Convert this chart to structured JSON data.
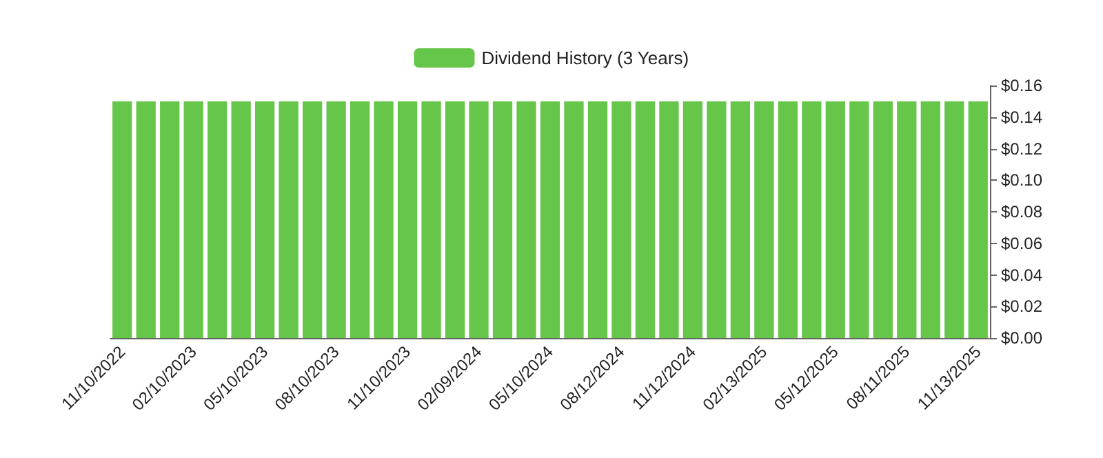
{
  "chart_data": {
    "type": "bar",
    "categories": [
      "11/10/2022",
      null,
      null,
      "02/10/2023",
      null,
      null,
      "05/10/2023",
      null,
      null,
      "08/10/2023",
      null,
      null,
      "11/10/2023",
      null,
      null,
      "02/09/2024",
      null,
      null,
      "05/10/2024",
      null,
      null,
      "08/12/2024",
      null,
      null,
      "11/12/2024",
      null,
      null,
      "02/13/2025",
      null,
      null,
      "05/12/2025",
      null,
      null,
      "08/11/2025",
      null,
      null,
      "11/13/2025"
    ],
    "series": [
      {
        "name": "Dividend History (3 Years)",
        "color": "#66c64a",
        "values": [
          0.15,
          0.15,
          0.15,
          0.15,
          0.15,
          0.15,
          0.15,
          0.15,
          0.15,
          0.15,
          0.15,
          0.15,
          0.15,
          0.15,
          0.15,
          0.15,
          0.15,
          0.15,
          0.15,
          0.15,
          0.15,
          0.15,
          0.15,
          0.15,
          0.15,
          0.15,
          0.15,
          0.15,
          0.15,
          0.15,
          0.15,
          0.15,
          0.15,
          0.15,
          0.15,
          0.15,
          0.15
        ]
      }
    ],
    "ylim": [
      0,
      0.16
    ],
    "yticks": [
      {
        "value": 0,
        "label": "$0.00"
      },
      {
        "value": 0.02,
        "label": "$0.02"
      },
      {
        "value": 0.04,
        "label": "$0.04"
      },
      {
        "value": 0.06,
        "label": "$0.06"
      },
      {
        "value": 0.08,
        "label": "$0.08"
      },
      {
        "value": 0.1,
        "label": "$0.10"
      },
      {
        "value": 0.12,
        "label": "$0.12"
      },
      {
        "value": 0.14,
        "label": "$0.14"
      },
      {
        "value": 0.16,
        "label": "$0.16"
      }
    ],
    "grid": false,
    "legend": "top"
  }
}
